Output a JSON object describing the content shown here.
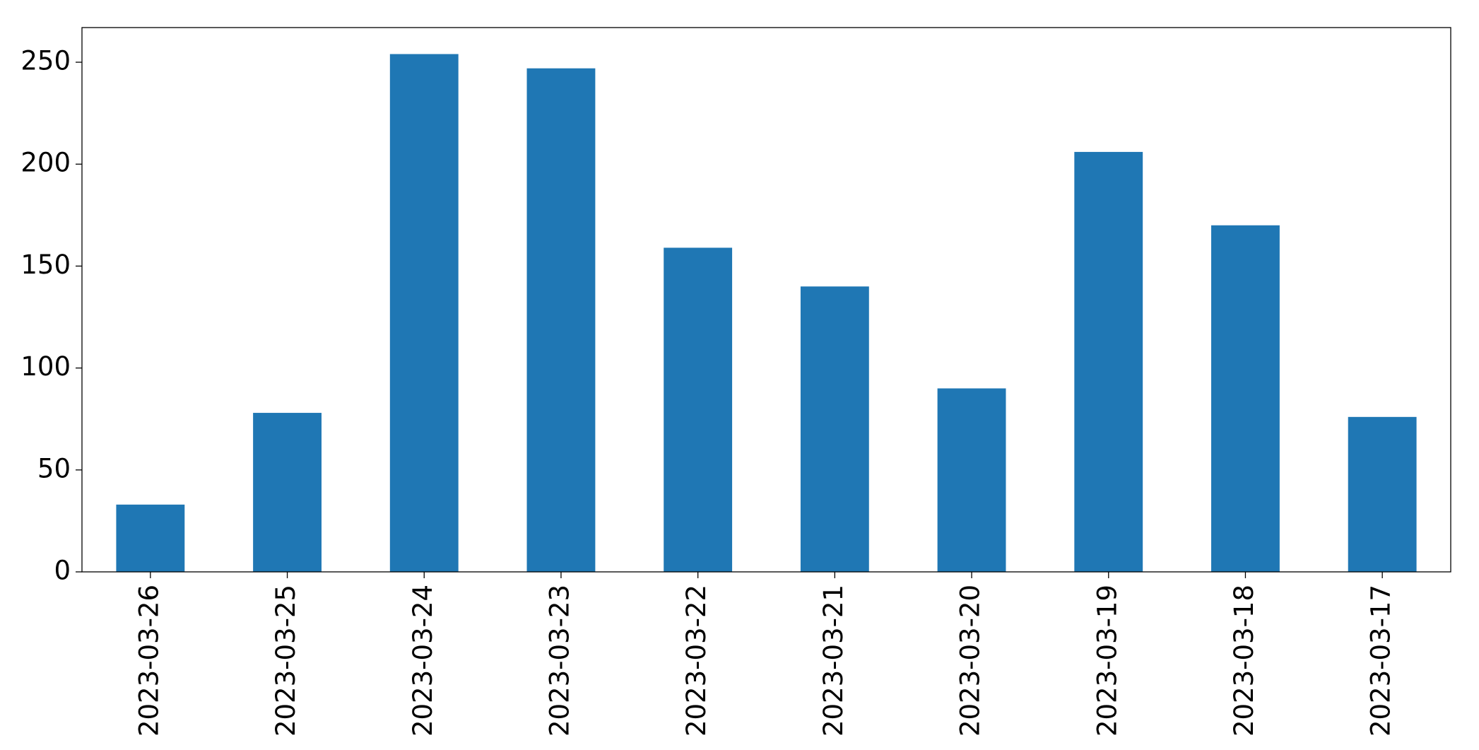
{
  "chart_data": {
    "type": "bar",
    "categories": [
      "2023-03-26",
      "2023-03-25",
      "2023-03-24",
      "2023-03-23",
      "2023-03-22",
      "2023-03-21",
      "2023-03-20",
      "2023-03-19",
      "2023-03-18",
      "2023-03-17"
    ],
    "values": [
      33,
      78,
      254,
      247,
      159,
      140,
      90,
      206,
      170,
      76
    ],
    "color": "#1f77b4",
    "ylim": [
      0,
      267
    ],
    "yticks": [
      0,
      50,
      100,
      150,
      200,
      250
    ],
    "grid": false
  }
}
